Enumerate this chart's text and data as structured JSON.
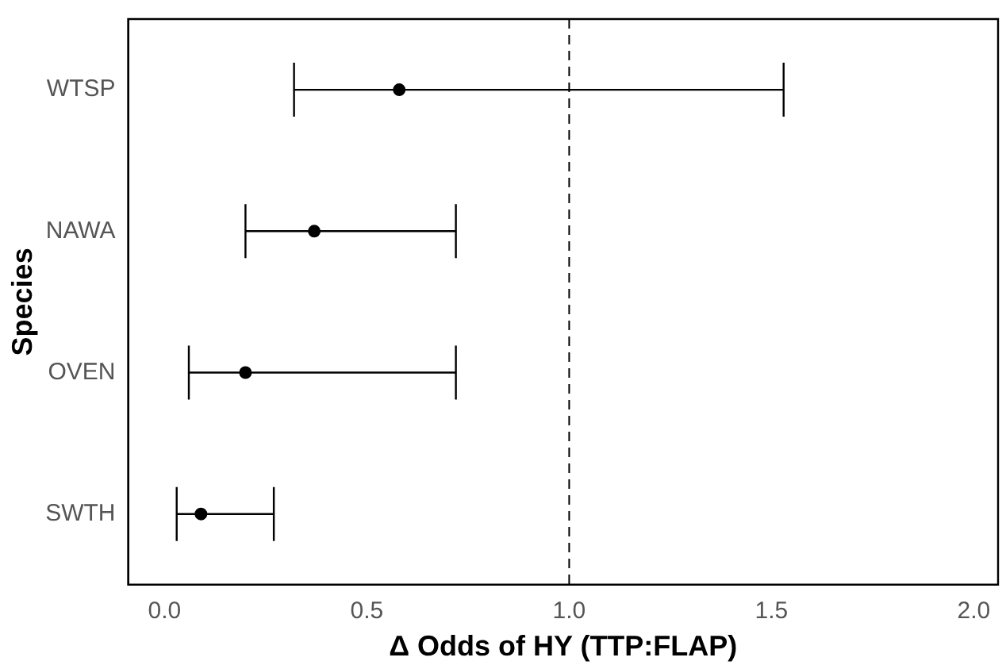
{
  "chart_data": {
    "type": "scatter",
    "orientation": "horizontal",
    "xlabel": "Δ Odds of HY (TTP:FLAP)",
    "ylabel": "Species",
    "categories": [
      "WTSP",
      "NAWA",
      "OVEN",
      "SWTH"
    ],
    "values": [
      0.58,
      0.37,
      0.2,
      0.09
    ],
    "errors": [
      [
        0.32,
        1.53
      ],
      [
        0.2,
        0.72
      ],
      [
        0.06,
        0.72
      ],
      [
        0.03,
        0.27
      ]
    ],
    "color": "#000000",
    "marker": "circle",
    "grid": false,
    "legend": false,
    "xlim": [
      -0.09,
      2.06
    ],
    "xticks": [
      {
        "value": 0,
        "label": "0.0"
      },
      {
        "value": 0.5,
        "label": "0.5"
      },
      {
        "value": 1,
        "label": "1.0"
      },
      {
        "value": 1.5,
        "label": "1.5"
      },
      {
        "value": 2,
        "label": "2.0"
      }
    ],
    "ref_lines": [
      {
        "axis": "x",
        "value": 1,
        "line_style": "dashed",
        "color": "#000000"
      }
    ]
  }
}
